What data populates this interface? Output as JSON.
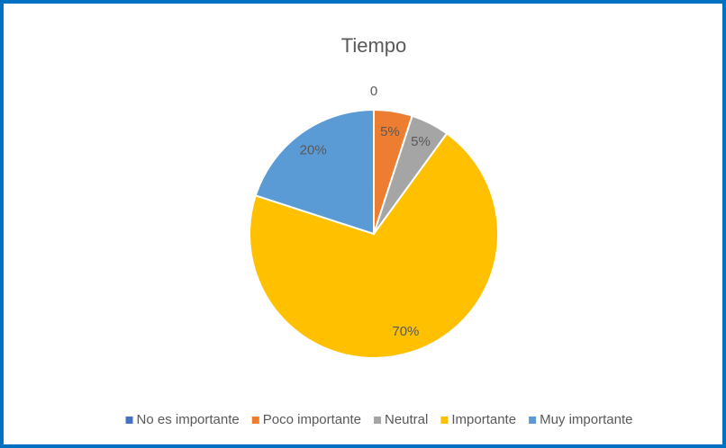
{
  "chart_data": {
    "type": "pie",
    "title": "Tiempo",
    "categories": [
      "No es importante",
      "Poco importante",
      "Neutral",
      "Importante",
      "Muy importante"
    ],
    "values": [
      0,
      5,
      5,
      70,
      20
    ],
    "value_labels": [
      "0",
      "5%",
      "5%",
      "70%",
      "20%"
    ],
    "colors": [
      "#4472c4",
      "#ed7d31",
      "#a5a5a5",
      "#ffc000",
      "#5b9bd5"
    ],
    "legend": "bottom"
  }
}
